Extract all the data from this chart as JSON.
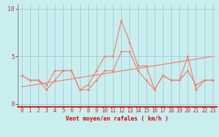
{
  "xlabel": "Vent moyen/en rafales ( km/h )",
  "xlabel_color": "#dd0000",
  "bg_color": "#c8eef0",
  "grid_color": "#9bbfc8",
  "line_color": "#f08070",
  "spine_bottom_color": "#cc2222",
  "tick_color": "#cc2222",
  "xlim": [
    -0.5,
    23.5
  ],
  "ylim": [
    -0.3,
    10.5
  ],
  "xticks": [
    0,
    1,
    2,
    3,
    4,
    5,
    6,
    7,
    8,
    9,
    10,
    11,
    12,
    13,
    14,
    15,
    16,
    17,
    18,
    19,
    20,
    21,
    22,
    23
  ],
  "yticks": [
    0,
    5,
    10
  ],
  "line1_x": [
    0,
    1,
    2,
    3,
    4,
    5,
    6,
    7,
    8,
    9,
    10,
    11,
    12,
    13,
    14,
    15,
    16,
    17,
    18,
    19,
    20,
    21,
    22,
    23
  ],
  "line1_y": [
    3.0,
    2.5,
    2.5,
    2.0,
    3.5,
    3.5,
    3.5,
    1.5,
    2.0,
    3.5,
    5.0,
    5.0,
    8.8,
    6.5,
    4.0,
    4.0,
    1.5,
    3.0,
    2.5,
    2.5,
    5.0,
    1.5,
    2.5,
    2.5
  ],
  "line2_x": [
    0,
    1,
    2,
    3,
    4,
    5,
    6,
    7,
    8,
    9,
    10,
    11,
    12,
    13,
    14,
    15,
    16,
    17,
    18,
    19,
    20,
    21,
    22,
    23
  ],
  "line2_y": [
    3.0,
    2.5,
    2.5,
    1.5,
    2.5,
    3.5,
    3.5,
    1.5,
    1.5,
    2.5,
    3.5,
    3.5,
    5.5,
    5.5,
    3.5,
    2.5,
    1.5,
    3.0,
    2.5,
    2.5,
    3.5,
    2.0,
    2.5,
    2.5
  ],
  "trend_x": [
    0,
    23
  ],
  "trend_y": [
    1.8,
    5.0
  ]
}
